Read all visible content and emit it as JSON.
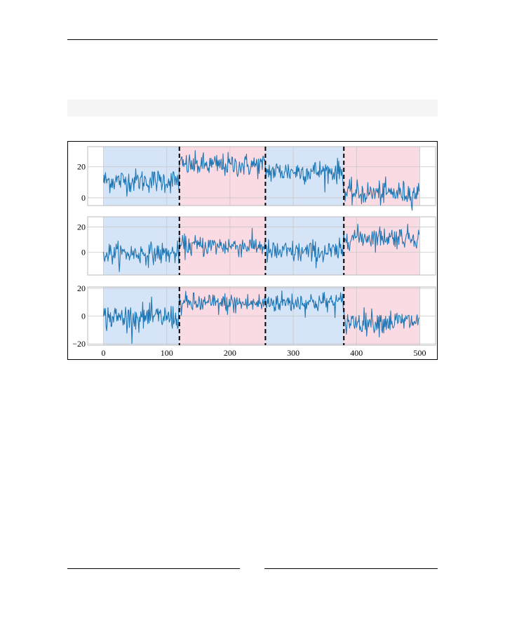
{
  "chart_data": {
    "type": "line",
    "description_units": "segment index (x) vs value (y)",
    "xlim": [
      -25,
      525
    ],
    "x_ticks": [
      0,
      100,
      200,
      300,
      400,
      500
    ],
    "x_tick_labels": [
      "0",
      "100",
      "200",
      "300",
      "400",
      "500"
    ],
    "changepoints": [
      120,
      256,
      380
    ],
    "regions": [
      {
        "start": 0,
        "end": 120,
        "color": "#d6e4f7"
      },
      {
        "start": 120,
        "end": 256,
        "color": "#fadbe3"
      },
      {
        "start": 256,
        "end": 380,
        "color": "#d6e4f7"
      },
      {
        "start": 380,
        "end": 500,
        "color": "#fadbe3"
      }
    ],
    "line_color": "#1f77b4",
    "changepoint_color": "#000000",
    "panels": [
      {
        "ylim": [
          -5,
          33
        ],
        "y_ticks": [
          0,
          20
        ],
        "y_tick_labels": [
          "0",
          "20"
        ],
        "segments": [
          {
            "start": 0,
            "end": 120,
            "mean": 11,
            "amp": 4.5
          },
          {
            "start": 120,
            "end": 256,
            "mean": 21,
            "amp": 4.5
          },
          {
            "start": 256,
            "end": 380,
            "mean": 17,
            "amp": 4.5
          },
          {
            "start": 380,
            "end": 500,
            "mean": 3,
            "amp": 4.5
          }
        ]
      },
      {
        "ylim": [
          -18,
          28
        ],
        "y_ticks": [
          0,
          20
        ],
        "y_tick_labels": [
          "0",
          "20"
        ],
        "segments": [
          {
            "start": 0,
            "end": 120,
            "mean": -1,
            "amp": 5
          },
          {
            "start": 120,
            "end": 256,
            "mean": 5,
            "amp": 5
          },
          {
            "start": 256,
            "end": 380,
            "mean": 0,
            "amp": 5.5
          },
          {
            "start": 380,
            "end": 500,
            "mean": 12,
            "amp": 5
          }
        ]
      },
      {
        "ylim": [
          -21,
          21
        ],
        "y_ticks": [
          -20,
          0,
          20
        ],
        "y_tick_labels": [
          "−20",
          "0",
          "20"
        ],
        "segments": [
          {
            "start": 0,
            "end": 120,
            "mean": -1,
            "amp": 5.5
          },
          {
            "start": 120,
            "end": 256,
            "mean": 9,
            "amp": 4.5
          },
          {
            "start": 256,
            "end": 380,
            "mean": 10,
            "amp": 4.5
          },
          {
            "start": 380,
            "end": 500,
            "mean": -4,
            "amp": 5
          }
        ]
      }
    ],
    "grid": true,
    "title": "",
    "xlabel": "",
    "ylabel": ""
  }
}
